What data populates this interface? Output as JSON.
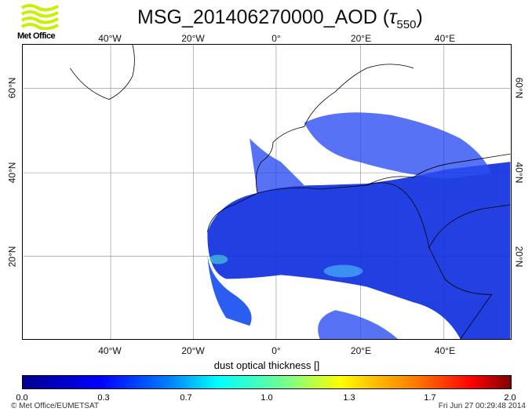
{
  "title": {
    "main": "MSG_201406270000_AOD (",
    "tau": "τ",
    "sub": "550",
    "close": ")"
  },
  "logo": {
    "text": "Met Office"
  },
  "lon_labels": [
    "40°W",
    "20°W",
    "0°",
    "20°E",
    "40°E"
  ],
  "lat_labels": [
    "60°N",
    "40°N",
    "20°N"
  ],
  "colorbar": {
    "label": "dust optical thickness []",
    "ticks": [
      "0.0",
      "0.3",
      "0.7",
      "1.0",
      "1.3",
      "1.7",
      "2.0"
    ],
    "range": [
      0.0,
      2.0
    ]
  },
  "footer": {
    "copyright": "© Met Office/EUMETSAT",
    "timestamp": "Fri Jun 27 00:29:48 2014"
  },
  "colors": {
    "low": "#0000ff",
    "high": "#800000"
  }
}
